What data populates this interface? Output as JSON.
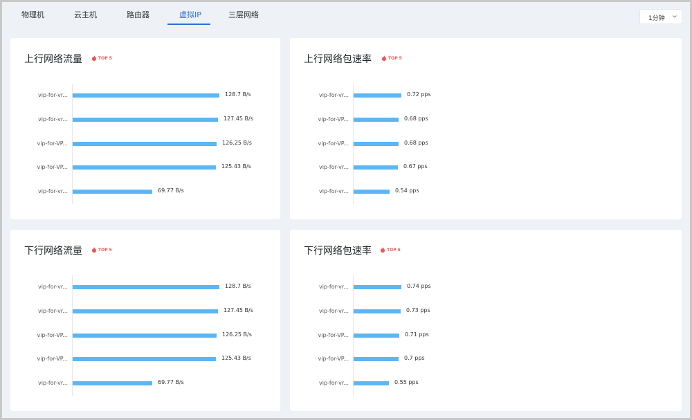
{
  "tabs": [
    {
      "label": "物理机"
    },
    {
      "label": "云主机"
    },
    {
      "label": "路由器"
    },
    {
      "label": "虚拟IP"
    },
    {
      "label": "三层网络"
    }
  ],
  "active_tab": "虚拟IP",
  "time_select": {
    "value": "1分钟"
  },
  "badge_text": "TOP 5",
  "accent_color": "#2a6fd6",
  "bar_color": "#5bb6f5",
  "chart_data": [
    {
      "type": "bar",
      "title": "上行网络流量",
      "unit": "B/s",
      "categories": [
        "vip-for-vr...",
        "vip-for-vr...",
        "vip-for-VP...",
        "vip-for-VP...",
        "vip-for-vr..."
      ],
      "values": [
        128.7,
        127.45,
        126.25,
        125.43,
        69.77
      ],
      "value_labels": [
        "128.7 B/s",
        "127.45 B/s",
        "126.25 B/s",
        "125.43 B/s",
        "69.77 B/s"
      ]
    },
    {
      "type": "bar",
      "title": "上行网络包速率",
      "unit": "pps",
      "categories": [
        "vip-for-vr...",
        "vip-for-VP...",
        "vip-for-VP...",
        "vip-for-vr...",
        "vip-for-vr..."
      ],
      "values": [
        0.72,
        0.68,
        0.68,
        0.67,
        0.54
      ],
      "value_labels": [
        "0.72  pps",
        "0.68  pps",
        "0.68  pps",
        "0.67  pps",
        "0.54  pps"
      ]
    },
    {
      "type": "bar",
      "title": "下行网络流量",
      "unit": "B/s",
      "categories": [
        "vip-for-vr...",
        "vip-for-vr...",
        "vip-for-VP...",
        "vip-for-VP...",
        "vip-for-vr..."
      ],
      "values": [
        128.7,
        127.45,
        126.25,
        125.43,
        69.77
      ],
      "value_labels": [
        "128.7 B/s",
        "127.45 B/s",
        "126.25 B/s",
        "125.43 B/s",
        "69.77 B/s"
      ]
    },
    {
      "type": "bar",
      "title": "下行网络包速率",
      "unit": "pps",
      "categories": [
        "vip-for-vr...",
        "vip-for-vr...",
        "vip-for-VP...",
        "vip-for-VP...",
        "vip-for-vr..."
      ],
      "values": [
        0.74,
        0.73,
        0.71,
        0.7,
        0.55
      ],
      "value_labels": [
        "0.74  pps",
        "0.73  pps",
        "0.71  pps",
        "0.7  pps",
        "0.55  pps"
      ]
    }
  ]
}
